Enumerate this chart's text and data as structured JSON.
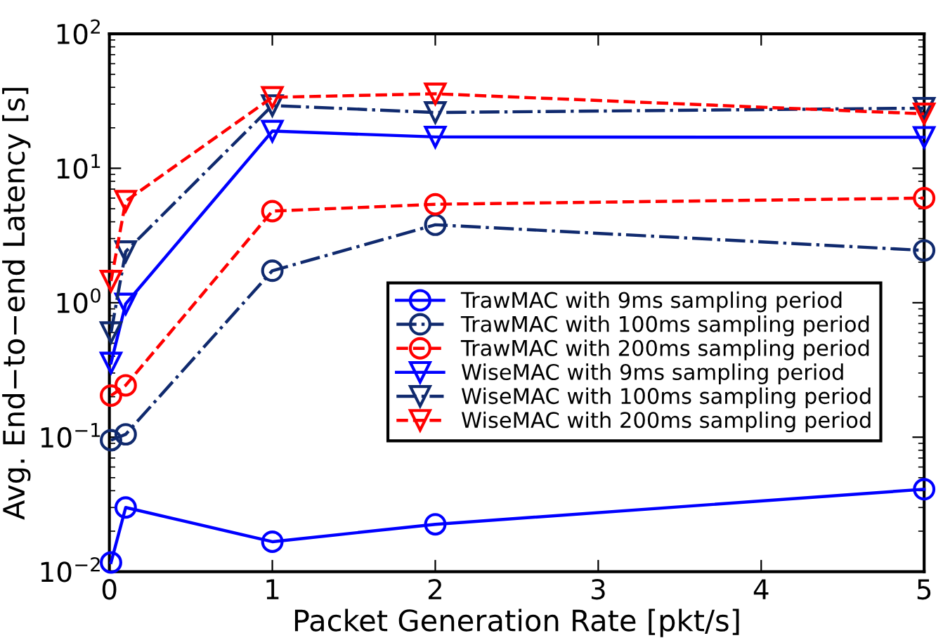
{
  "chart_data": {
    "type": "line",
    "xlabel": "Packet Generation Rate [pkt/s]",
    "ylabel": "Avg. End−to−end Latency [s]",
    "log": "y",
    "grid": false,
    "legend": "right",
    "xlim": [
      0,
      5
    ],
    "xticks": [
      0,
      1,
      2,
      3,
      4,
      5
    ],
    "ylim": [
      0.01,
      100
    ],
    "yticks": [
      {
        "value": 0.01,
        "label": "10$^{−2}$"
      },
      {
        "value": 0.1,
        "label": "10$^{−1}$"
      },
      {
        "value": 1,
        "label": "10$^{0}$"
      },
      {
        "value": 10,
        "label": "10$^{1}$"
      },
      {
        "value": 100,
        "label": "10$^{2}$"
      }
    ],
    "x": [
      0.01,
      0.1,
      1,
      2,
      5
    ],
    "series": [
      {
        "name": "TrawMAC with 9ms sampling period",
        "color": "#0000ff",
        "marker": "circle",
        "line_style": "solid",
        "values": [
          0.0117,
          0.03,
          0.0167,
          0.0225,
          0.041
        ]
      },
      {
        "name": "TrawMAC with 100ms sampling period",
        "color": "#102a6e",
        "marker": "circle",
        "line_style": "dashdot",
        "values": [
          0.095,
          0.105,
          1.73,
          3.8,
          2.45
        ]
      },
      {
        "name": "TrawMAC with 200ms sampling period",
        "color": "#ff0000",
        "marker": "circle",
        "line_style": "dashed",
        "values": [
          0.204,
          0.243,
          4.8,
          5.4,
          6.0
        ]
      },
      {
        "name": "WiseMAC with 9ms sampling period",
        "color": "#0000ff",
        "marker": "triangle",
        "line_style": "solid",
        "values": [
          0.357,
          0.98,
          18.9,
          17.1,
          17
        ]
      },
      {
        "name": "WiseMAC with 100ms sampling period",
        "color": "#102a6e",
        "marker": "triangle",
        "line_style": "dashdot",
        "values": [
          0.6,
          2.4,
          29.3,
          26,
          28
        ]
      },
      {
        "name": "WiseMAC with 200ms sampling period",
        "color": "#ff0000",
        "marker": "triangle",
        "line_style": "dashed",
        "values": [
          1.45,
          5.7,
          33.7,
          35.8,
          25.4
        ]
      }
    ]
  }
}
